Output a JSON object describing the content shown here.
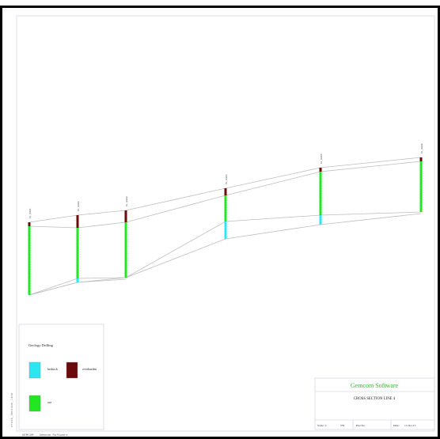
{
  "legend": {
    "title": "Geology Drilling",
    "items": [
      {
        "label": "bedrock",
        "color": "#2ee6f2"
      },
      {
        "label": "overburden",
        "color": "#6b0a0a"
      },
      {
        "label": "ore",
        "color": "#22e622"
      }
    ]
  },
  "holes": [
    {
      "id": "h1",
      "label": "DL_0001"
    },
    {
      "id": "h2",
      "label": "DL_0002"
    },
    {
      "id": "h3",
      "label": "DL_0003"
    },
    {
      "id": "h4",
      "label": "DL_0004"
    },
    {
      "id": "h5",
      "label": "DL_0005"
    },
    {
      "id": "h6",
      "label": "DL_0006"
    }
  ],
  "title_block": {
    "company": "Gemcom Software",
    "title": "CROSS SECTION LINE 4",
    "scale_label": "Scale: 1:",
    "scale_value": "579",
    "plot_label": "Plot No.",
    "date_label": "Date:",
    "date_value": "17-Oct-15"
  },
  "side_text": "cross_section_line",
  "footer_text": "GEMCOM - Gemcom Software"
}
